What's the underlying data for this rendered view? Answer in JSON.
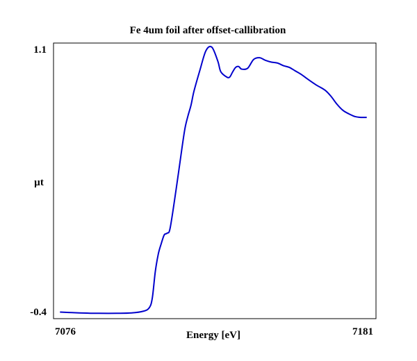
{
  "chart_data": {
    "type": "line",
    "title": "Fe 4um foil after offset-callibration",
    "xlabel": "Energy [eV]",
    "ylabel": "µt",
    "xlim": [
      7076,
      7181
    ],
    "ylim": [
      -0.4,
      1.1
    ],
    "x_tick_labels": [
      "7076",
      "7181"
    ],
    "y_tick_labels": [
      "1.1",
      "-0.4"
    ],
    "grid": false,
    "legend": "none",
    "series": [
      {
        "color": "#0000cc",
        "x": [
          7077,
          7081,
          7086,
          7090,
          7096,
          7101,
          7105,
          7107,
          7108,
          7109,
          7110,
          7111,
          7112,
          7113,
          7114,
          7116,
          7118,
          7119,
          7120,
          7121,
          7122,
          7124,
          7126,
          7128,
          7130,
          7131,
          7133,
          7134,
          7135,
          7136,
          7137,
          7138,
          7140,
          7142,
          7144,
          7146,
          7148,
          7150,
          7152,
          7154,
          7156,
          7158,
          7160,
          7163,
          7166,
          7168,
          7170,
          7172,
          7174,
          7176,
          7178,
          7180
        ],
        "y": [
          -0.41,
          -0.413,
          -0.416,
          -0.417,
          -0.417,
          -0.415,
          -0.405,
          -0.385,
          -0.33,
          -0.18,
          -0.08,
          -0.02,
          0.03,
          0.04,
          0.07,
          0.29,
          0.53,
          0.64,
          0.71,
          0.77,
          0.85,
          0.97,
          1.08,
          1.1,
          1.02,
          0.96,
          0.93,
          0.93,
          0.96,
          0.985,
          0.99,
          0.975,
          0.98,
          1.03,
          1.04,
          1.025,
          1.015,
          1.01,
          0.995,
          0.985,
          0.965,
          0.945,
          0.92,
          0.885,
          0.855,
          0.82,
          0.775,
          0.74,
          0.72,
          0.705,
          0.7,
          0.7
        ]
      }
    ]
  }
}
